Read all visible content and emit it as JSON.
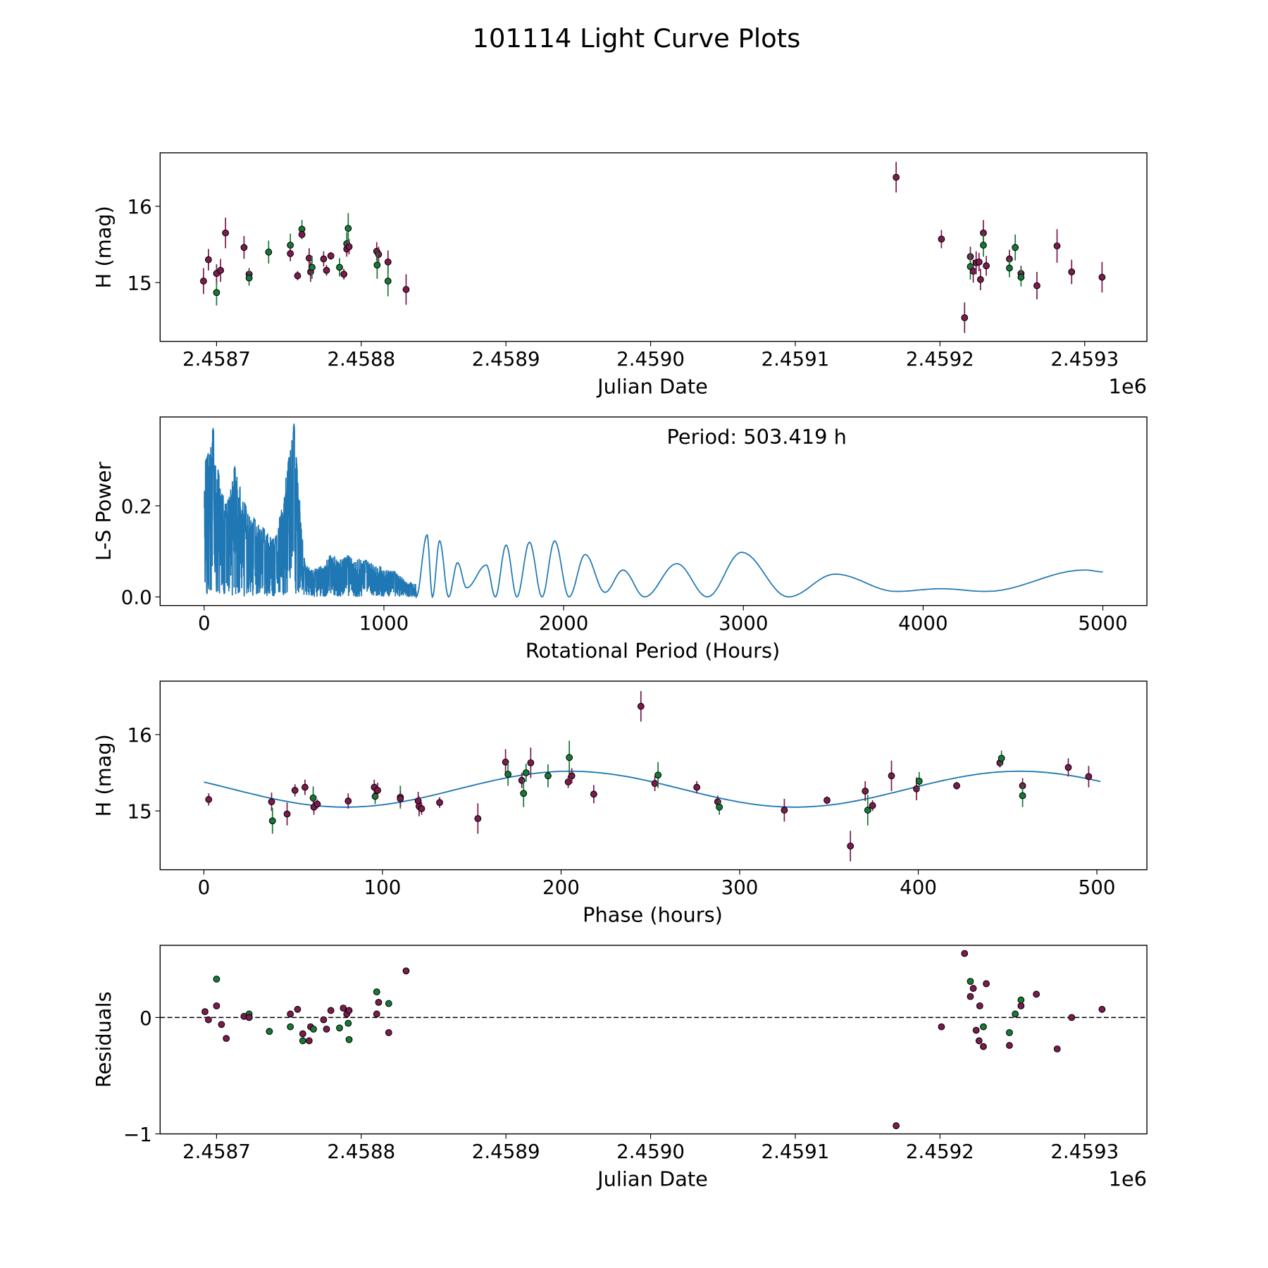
{
  "title": "101114 Light Curve Plots",
  "colors": {
    "p": "#7b1b4e",
    "g": "#157a36",
    "edge": "#000000",
    "line": "#1f77b4"
  },
  "chart_data": [
    {
      "type": "scatter",
      "name": "light-curve",
      "xlabel": "Julian Date",
      "ylabel": "H (mag)",
      "x_offset_label": "1e6",
      "x_units_note": "x values are days after 2458700",
      "xlim": [
        -39,
        643
      ],
      "ylim": [
        14.23,
        16.7
      ],
      "xticks": [
        0,
        100,
        200,
        300,
        400,
        500,
        600
      ],
      "xtick_labels": [
        "2.4587",
        "2.4588",
        "2.4589",
        "2.4590",
        "2.4591",
        "2.4592",
        "2.4593"
      ],
      "yticks": [
        15,
        16
      ],
      "ytick_labels": [
        "15",
        "16"
      ],
      "points": [
        [
          -9,
          15.02,
          0.17,
          "p"
        ],
        [
          -5.6,
          15.3,
          0.14,
          "p"
        ],
        [
          0,
          14.87,
          0.17,
          "g"
        ],
        [
          0,
          15.12,
          0.12,
          "p"
        ],
        [
          2.8,
          15.16,
          0.15,
          "p"
        ],
        [
          6.2,
          15.65,
          0.2,
          "p"
        ],
        [
          19,
          15.46,
          0.15,
          "p"
        ],
        [
          22.5,
          15.11,
          0.08,
          "p"
        ],
        [
          22.5,
          15.06,
          0.1,
          "g"
        ],
        [
          36,
          15.4,
          0.15,
          "g"
        ],
        [
          51,
          15.49,
          0.15,
          "g"
        ],
        [
          51,
          15.38,
          0.1,
          "p"
        ],
        [
          56,
          15.09,
          0.06,
          "p"
        ],
        [
          59,
          15.7,
          0.12,
          "g"
        ],
        [
          59,
          15.63,
          0.06,
          "p"
        ],
        [
          64,
          15.32,
          0.13,
          "p"
        ],
        [
          65,
          15.14,
          0.13,
          "p"
        ],
        [
          66,
          15.2,
          0.15,
          "g"
        ],
        [
          74,
          15.31,
          0.1,
          "p"
        ],
        [
          76,
          15.16,
          0.07,
          "p"
        ],
        [
          79,
          15.35,
          0.05,
          "p"
        ],
        [
          85,
          15.2,
          0.12,
          "g"
        ],
        [
          88,
          15.11,
          0.07,
          "p"
        ],
        [
          90,
          15.51,
          0.15,
          "g"
        ],
        [
          90,
          15.44,
          0.1,
          "p"
        ],
        [
          91.6,
          15.47,
          0.1,
          "p"
        ],
        [
          91,
          15.71,
          0.2,
          "g"
        ],
        [
          110.7,
          15.41,
          0.12,
          "p"
        ],
        [
          112,
          15.37,
          0.1,
          "p"
        ],
        [
          111,
          15.23,
          0.18,
          "g"
        ],
        [
          118.5,
          15.27,
          0.15,
          "p"
        ],
        [
          118.5,
          15.02,
          0.2,
          "g"
        ],
        [
          131,
          14.91,
          0.2,
          "p"
        ],
        [
          469.7,
          16.38,
          0.2,
          "p"
        ],
        [
          501,
          15.57,
          0.12,
          "p"
        ],
        [
          517,
          14.54,
          0.2,
          "p"
        ],
        [
          521,
          15.34,
          0.13,
          "p"
        ],
        [
          521,
          15.21,
          0.17,
          "g"
        ],
        [
          523,
          15.15,
          0.15,
          "p"
        ],
        [
          525,
          15.26,
          0.15,
          "p"
        ],
        [
          527,
          15.27,
          0.12,
          "p"
        ],
        [
          528,
          15.04,
          0.14,
          "p"
        ],
        [
          530,
          15.65,
          0.17,
          "p"
        ],
        [
          530,
          15.49,
          0.15,
          "g"
        ],
        [
          532,
          15.22,
          0.13,
          "p"
        ],
        [
          548,
          15.31,
          0.12,
          "p"
        ],
        [
          548,
          15.19,
          0.12,
          "g"
        ],
        [
          552,
          15.46,
          0.17,
          "g"
        ],
        [
          556,
          15.12,
          0.1,
          "p"
        ],
        [
          556,
          15.07,
          0.12,
          "g"
        ],
        [
          567,
          14.96,
          0.18,
          "p"
        ],
        [
          580.9,
          15.48,
          0.22,
          "p"
        ],
        [
          591,
          15.14,
          0.16,
          "p"
        ],
        [
          612,
          15.07,
          0.2,
          "p"
        ]
      ]
    },
    {
      "type": "line",
      "name": "periodogram",
      "xlabel": "Rotational Period (Hours)",
      "ylabel": "L-S Power",
      "annotation": "Period: 503.419 h",
      "xlim": [
        -245,
        5245
      ],
      "ylim": [
        -0.019,
        0.395
      ],
      "xticks": [
        0,
        1000,
        2000,
        3000,
        4000,
        5000
      ],
      "xtick_labels": [
        "0",
        "1000",
        "2000",
        "3000",
        "4000",
        "5000"
      ],
      "yticks": [
        0.0,
        0.2
      ],
      "ytick_labels": [
        "0.0",
        "0.2"
      ],
      "dense_region_peaks": [
        [
          10,
          0.3
        ],
        [
          20,
          0.31
        ],
        [
          50,
          0.37
        ],
        [
          80,
          0.27
        ],
        [
          120,
          0.2
        ],
        [
          170,
          0.285
        ],
        [
          230,
          0.2
        ],
        [
          280,
          0.17
        ],
        [
          330,
          0.15
        ],
        [
          400,
          0.13
        ],
        [
          470,
          0.3
        ],
        [
          500,
          0.38
        ],
        [
          515,
          0.29
        ],
        [
          560,
          0.07
        ],
        [
          620,
          0.06
        ],
        [
          700,
          0.09
        ],
        [
          800,
          0.09
        ],
        [
          900,
          0.08
        ],
        [
          980,
          0.065
        ],
        [
          1060,
          0.055
        ],
        [
          1150,
          0.03
        ]
      ],
      "smooth_anchors": [
        [
          1180,
          0.0
        ],
        [
          1240,
          0.136
        ],
        [
          1270,
          0.0
        ],
        [
          1310,
          0.123
        ],
        [
          1360,
          0.0
        ],
        [
          1410,
          0.075
        ],
        [
          1460,
          0.02
        ],
        [
          1570,
          0.07
        ],
        [
          1620,
          0.0
        ],
        [
          1680,
          0.114
        ],
        [
          1740,
          0.0
        ],
        [
          1810,
          0.12
        ],
        [
          1880,
          0.0
        ],
        [
          1950,
          0.123
        ],
        [
          2030,
          0.0
        ],
        [
          2120,
          0.093
        ],
        [
          2230,
          0.01
        ],
        [
          2330,
          0.059
        ],
        [
          2450,
          0.0
        ],
        [
          2630,
          0.073
        ],
        [
          2800,
          0.0
        ],
        [
          2990,
          0.098
        ],
        [
          3250,
          0.0
        ],
        [
          3510,
          0.05
        ],
        [
          3850,
          0.012
        ],
        [
          4100,
          0.018
        ],
        [
          4350,
          0.012
        ],
        [
          4900,
          0.059
        ],
        [
          5000,
          0.055
        ]
      ]
    },
    {
      "type": "scatter",
      "name": "phased-curve",
      "xlabel": "Phase (hours)",
      "ylabel": "H (mag)",
      "xlim": [
        -24.5,
        528
      ],
      "ylim": [
        14.23,
        16.7
      ],
      "xticks": [
        0,
        100,
        200,
        300,
        400,
        500
      ],
      "xtick_labels": [
        "0",
        "100",
        "200",
        "300",
        "400",
        "500"
      ],
      "yticks": [
        15,
        16
      ],
      "ytick_labels": [
        "15",
        "16"
      ],
      "fit": {
        "mean": 15.285,
        "amplitude": 0.235,
        "period": 251.7,
        "peak_phase": 205,
        "range": [
          0,
          503.419
        ]
      },
      "points": [
        [
          2.7,
          15.15,
          0.08,
          "p"
        ],
        [
          37.9,
          15.12,
          0.12,
          "p"
        ],
        [
          38.4,
          14.87,
          0.17,
          "g"
        ],
        [
          46.6,
          14.96,
          0.15,
          "p"
        ],
        [
          51,
          15.27,
          0.08,
          "p"
        ],
        [
          56.6,
          15.31,
          0.1,
          "p"
        ],
        [
          61.2,
          15.17,
          0.15,
          "g"
        ],
        [
          61.6,
          15.05,
          0.1,
          "p"
        ],
        [
          63.5,
          15.09,
          0.06,
          "p"
        ],
        [
          80.8,
          15.13,
          0.1,
          "p"
        ],
        [
          95.4,
          15.31,
          0.1,
          "p"
        ],
        [
          95.9,
          15.19,
          0.1,
          "g"
        ],
        [
          97.3,
          15.27,
          0.1,
          "p"
        ],
        [
          110,
          15.18,
          0.15,
          "g"
        ],
        [
          110,
          15.16,
          0.1,
          "p"
        ],
        [
          120,
          15.13,
          0.12,
          "p"
        ],
        [
          120.5,
          15.06,
          0.13,
          "p"
        ],
        [
          121.9,
          15.03,
          0.08,
          "p"
        ],
        [
          132,
          15.11,
          0.07,
          "p"
        ],
        [
          153.4,
          14.9,
          0.2,
          "p"
        ],
        [
          168.9,
          15.64,
          0.17,
          "p"
        ],
        [
          170.3,
          15.48,
          0.15,
          "g"
        ],
        [
          178,
          15.4,
          0.1,
          "p"
        ],
        [
          179,
          15.23,
          0.18,
          "g"
        ],
        [
          180.4,
          15.5,
          0.12,
          "g"
        ],
        [
          183,
          15.63,
          0.2,
          "p"
        ],
        [
          192.7,
          15.46,
          0.15,
          "g"
        ],
        [
          204,
          15.38,
          0.08,
          "p"
        ],
        [
          204.6,
          15.7,
          0.22,
          "g"
        ],
        [
          206,
          15.46,
          0.1,
          "p"
        ],
        [
          218.3,
          15.22,
          0.12,
          "p"
        ],
        [
          244.7,
          16.37,
          0.2,
          "p"
        ],
        [
          252.5,
          15.36,
          0.1,
          "p"
        ],
        [
          254.3,
          15.47,
          0.17,
          "g"
        ],
        [
          276,
          15.31,
          0.08,
          "p"
        ],
        [
          287.7,
          15.12,
          0.08,
          "p"
        ],
        [
          288.6,
          15.05,
          0.1,
          "g"
        ],
        [
          325,
          15.01,
          0.15,
          "p"
        ],
        [
          348.9,
          15.14,
          0.05,
          "p"
        ],
        [
          362,
          14.54,
          0.2,
          "p"
        ],
        [
          370.3,
          15.26,
          0.13,
          "p"
        ],
        [
          371.7,
          15.01,
          0.2,
          "g"
        ],
        [
          374.4,
          15.07,
          0.07,
          "p"
        ],
        [
          385,
          15.46,
          0.2,
          "p"
        ],
        [
          399,
          15.29,
          0.15,
          "p"
        ],
        [
          400.5,
          15.39,
          0.12,
          "g"
        ],
        [
          421.5,
          15.33,
          0.05,
          "p"
        ],
        [
          445.7,
          15.63,
          0.06,
          "p"
        ],
        [
          446.6,
          15.69,
          0.1,
          "g"
        ],
        [
          458.4,
          15.33,
          0.1,
          "p"
        ],
        [
          458.4,
          15.2,
          0.15,
          "g"
        ],
        [
          484,
          15.57,
          0.12,
          "p"
        ],
        [
          495.4,
          15.45,
          0.14,
          "p"
        ]
      ]
    },
    {
      "type": "scatter",
      "name": "residuals",
      "xlabel": "Julian Date",
      "ylabel": "Residuals",
      "x_offset_label": "1e6",
      "xlim": [
        -39,
        643
      ],
      "ylim": [
        -1.0,
        0.62
      ],
      "xticks": [
        0,
        100,
        200,
        300,
        400,
        500,
        600
      ],
      "xtick_labels": [
        "2.4587",
        "2.4588",
        "2.4589",
        "2.4590",
        "2.4591",
        "2.4592",
        "2.4593"
      ],
      "yticks": [
        -1,
        0
      ],
      "ytick_labels": [
        "−1",
        "0"
      ],
      "reference_line": 0,
      "points": [
        [
          -8,
          0.05,
          "p"
        ],
        [
          -5.6,
          -0.02,
          "p"
        ],
        [
          0,
          0.33,
          "g"
        ],
        [
          0,
          0.1,
          "p"
        ],
        [
          3.4,
          -0.06,
          "p"
        ],
        [
          6.7,
          -0.18,
          "p"
        ],
        [
          19,
          0.01,
          "p"
        ],
        [
          22.5,
          0.03,
          "g"
        ],
        [
          22.5,
          0.0,
          "p"
        ],
        [
          36.5,
          -0.12,
          "g"
        ],
        [
          51,
          0.03,
          "p"
        ],
        [
          51,
          -0.08,
          "g"
        ],
        [
          56,
          0.07,
          "p"
        ],
        [
          59.6,
          -0.14,
          "p"
        ],
        [
          59.6,
          -0.2,
          "g"
        ],
        [
          64,
          -0.2,
          "p"
        ],
        [
          65,
          -0.08,
          "p"
        ],
        [
          67,
          -0.1,
          "g"
        ],
        [
          74,
          -0.02,
          "p"
        ],
        [
          76,
          -0.1,
          "p"
        ],
        [
          79,
          0.06,
          "p"
        ],
        [
          85,
          -0.09,
          "g"
        ],
        [
          87.6,
          0.08,
          "p"
        ],
        [
          90,
          0.03,
          "p"
        ],
        [
          91,
          -0.05,
          "g"
        ],
        [
          91.6,
          0.06,
          "p"
        ],
        [
          91.6,
          -0.19,
          "g"
        ],
        [
          110.7,
          0.22,
          "g"
        ],
        [
          112,
          0.13,
          "p"
        ],
        [
          110.7,
          0.03,
          "p"
        ],
        [
          119,
          0.12,
          "g"
        ],
        [
          119,
          -0.13,
          "p"
        ],
        [
          131,
          0.4,
          "p"
        ],
        [
          469.7,
          -0.93,
          "p"
        ],
        [
          501,
          -0.08,
          "p"
        ],
        [
          517,
          0.55,
          "p"
        ],
        [
          521,
          0.31,
          "g"
        ],
        [
          523,
          0.25,
          "p"
        ],
        [
          521,
          0.18,
          "p"
        ],
        [
          527.5,
          0.1,
          "p"
        ],
        [
          525,
          -0.11,
          "p"
        ],
        [
          527,
          -0.2,
          "p"
        ],
        [
          530,
          -0.25,
          "p"
        ],
        [
          530,
          -0.08,
          "g"
        ],
        [
          532,
          0.29,
          "p"
        ],
        [
          548,
          -0.13,
          "g"
        ],
        [
          548,
          -0.24,
          "p"
        ],
        [
          552,
          0.03,
          "g"
        ],
        [
          556,
          0.1,
          "p"
        ],
        [
          556,
          0.15,
          "g"
        ],
        [
          566.6,
          0.2,
          "p"
        ],
        [
          581,
          -0.27,
          "p"
        ],
        [
          591,
          0.0,
          "p"
        ],
        [
          612,
          0.07,
          "p"
        ]
      ]
    }
  ]
}
